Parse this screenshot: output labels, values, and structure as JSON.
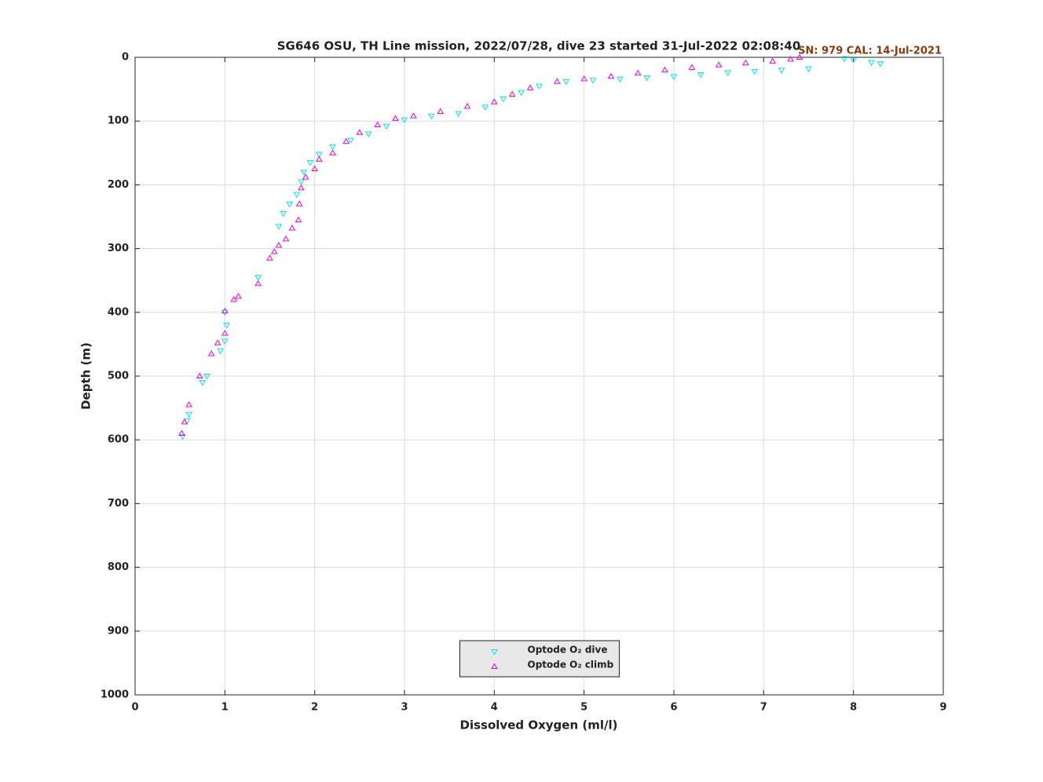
{
  "chart_data": {
    "type": "scatter",
    "title": "SG646 OSU, TH Line mission, 2022/07/28, dive 23 started 31-Jul-2022 02:08:40",
    "annotation": "SN: 979  CAL: 14-Jul-2021",
    "annotation_color": "#8b3a0f",
    "xlabel": "Dissolved Oxygen (ml/l)",
    "ylabel": "Depth (m)",
    "xlim": [
      0,
      9
    ],
    "xticks": [
      0,
      1,
      2,
      3,
      4,
      5,
      6,
      7,
      8,
      9
    ],
    "ylim": [
      0,
      1000
    ],
    "yticks": [
      0,
      100,
      200,
      300,
      400,
      500,
      600,
      700,
      800,
      900,
      1000
    ],
    "y_inverted": true,
    "grid": true,
    "legend": "bottom",
    "series": [
      {
        "name": "Optode O₂ dive",
        "color": "#00e5ee",
        "marker": "triangle-down",
        "x": [
          8.3,
          8.2,
          8.0,
          7.9,
          7.5,
          7.2,
          6.9,
          6.6,
          6.3,
          6.0,
          5.7,
          5.4,
          5.1,
          4.8,
          4.5,
          4.3,
          4.1,
          3.9,
          3.6,
          3.3,
          3.0,
          2.8,
          2.6,
          2.4,
          2.2,
          2.05,
          1.95,
          1.88,
          1.85,
          1.8,
          1.72,
          1.65,
          1.6,
          1.37,
          1.0,
          1.02,
          1.0,
          0.95,
          0.8,
          0.75,
          0.6,
          0.58,
          0.53
        ],
        "values": [
          10,
          8,
          4,
          2,
          18,
          20,
          22,
          24,
          27,
          30,
          32,
          34,
          36,
          38,
          45,
          55,
          65,
          78,
          88,
          92,
          98,
          108,
          120,
          130,
          140,
          152,
          165,
          180,
          195,
          215,
          230,
          245,
          265,
          345,
          400,
          420,
          445,
          460,
          500,
          510,
          560,
          570,
          595
        ]
      },
      {
        "name": "Optode O₂ climb",
        "color": "#ee00ee",
        "marker": "triangle-up",
        "x": [
          7.4,
          7.3,
          7.1,
          6.8,
          6.5,
          6.2,
          5.9,
          5.6,
          5.3,
          5.0,
          4.7,
          4.4,
          4.2,
          4.0,
          3.7,
          3.4,
          3.1,
          2.9,
          2.7,
          2.5,
          2.35,
          2.2,
          2.05,
          2.0,
          1.9,
          1.85,
          1.83,
          1.82,
          1.75,
          1.68,
          1.6,
          1.55,
          1.5,
          1.37,
          1.15,
          1.1,
          1.0,
          1.0,
          0.92,
          0.85,
          0.72,
          0.6,
          0.55,
          0.52
        ],
        "values": [
          0,
          3,
          6,
          9,
          12,
          16,
          20,
          25,
          30,
          34,
          38,
          48,
          58,
          70,
          77,
          85,
          92,
          96,
          106,
          118,
          132,
          150,
          160,
          175,
          188,
          205,
          230,
          255,
          268,
          285,
          295,
          305,
          315,
          355,
          375,
          380,
          398,
          433,
          448,
          465,
          500,
          545,
          572,
          590
        ]
      }
    ]
  }
}
